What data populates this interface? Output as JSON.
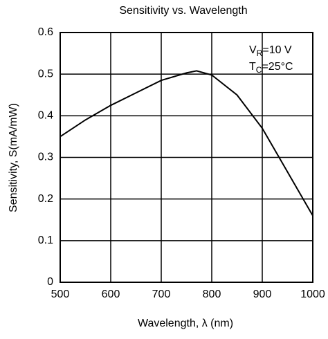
{
  "chart_data": {
    "type": "line",
    "title": "Sensitivity vs. Wavelength",
    "x_label": "Wavelength,  λ (nm)",
    "y_label": "Sensitivity, S(mA/mW)",
    "x": [
      500,
      550,
      600,
      650,
      700,
      750,
      770,
      800,
      850,
      900,
      950,
      1000
    ],
    "values": [
      0.35,
      0.39,
      0.425,
      0.455,
      0.485,
      0.503,
      0.508,
      0.498,
      0.45,
      0.37,
      0.265,
      0.16
    ],
    "color": "#000000",
    "xlim": [
      500,
      1000
    ],
    "xticks": [
      500,
      600,
      700,
      800,
      900,
      1000
    ],
    "ylim": [
      0,
      0.6
    ],
    "yticks": [
      0,
      0.1,
      0.2,
      0.3,
      0.4,
      0.5,
      0.6
    ],
    "grid": true,
    "annotations": [
      {
        "main": "V",
        "sub": "R",
        "rest": "=10 V"
      },
      {
        "main": "T",
        "sub": "C",
        "rest": "=25°C"
      }
    ]
  }
}
